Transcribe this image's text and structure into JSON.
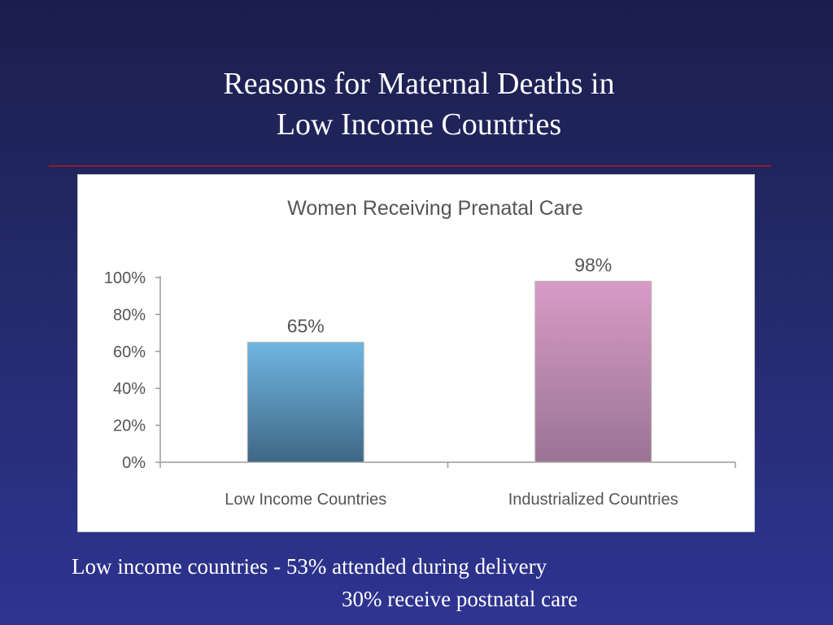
{
  "slide": {
    "title_line1": "Reasons for Maternal Deaths in",
    "title_line2": "Low Income Countries"
  },
  "colors": {
    "rule": "#8e1c2a",
    "bar_low_top": "#6fb6e2",
    "bar_low_bottom": "#3f6785",
    "bar_ind_top": "#d89bc7",
    "bar_ind_bottom": "#9a7494"
  },
  "chart_data": {
    "type": "bar",
    "title": "Women Receiving Prenatal Care",
    "categories": [
      "Low Income Countries",
      "Industrialized Countries"
    ],
    "values": [
      65,
      98
    ],
    "data_labels": [
      "65%",
      "98%"
    ],
    "ylim": [
      0,
      100
    ],
    "yticks": [
      0,
      20,
      40,
      60,
      80,
      100
    ],
    "ytick_labels": [
      "0%",
      "20%",
      "40%",
      "60%",
      "80%",
      "100%"
    ],
    "xlabel": "",
    "ylabel": "",
    "grid": false,
    "legend": "none"
  },
  "footnote": {
    "line1": "Low income countries - 53% attended during delivery",
    "line2": "30% receive postnatal care"
  }
}
